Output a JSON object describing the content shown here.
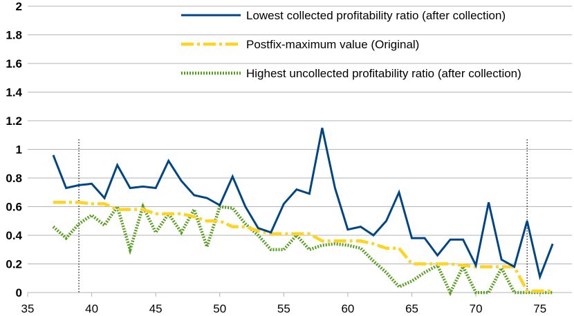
{
  "chart_data": {
    "type": "line",
    "title": "",
    "xlabel": "",
    "ylabel": "",
    "xlim": [
      35,
      77.5
    ],
    "ylim": [
      0,
      2
    ],
    "x_ticks": [
      35,
      40,
      45,
      50,
      55,
      60,
      65,
      70,
      75
    ],
    "y_ticks": [
      0,
      0.2,
      0.4,
      0.6,
      0.8,
      1,
      1.2,
      1.4,
      1.6,
      1.8,
      2
    ],
    "x_tick_labels": [
      "35",
      "40",
      "45",
      "50",
      "55",
      "60",
      "65",
      "70",
      "75"
    ],
    "y_tick_labels": [
      "0",
      "0.2",
      "0.4",
      "0.6",
      "0.8",
      "1",
      "1.2",
      "1.4",
      "1.6",
      "1.8",
      "2"
    ],
    "grid": "horizontal",
    "legend_position": "top-right",
    "vertical_markers": [
      39,
      74
    ],
    "x": [
      37,
      38,
      39,
      40,
      41,
      42,
      43,
      44,
      45,
      46,
      47,
      48,
      49,
      50,
      51,
      52,
      53,
      54,
      55,
      56,
      57,
      58,
      59,
      60,
      61,
      62,
      63,
      64,
      65,
      66,
      67,
      68,
      69,
      70,
      71,
      72,
      73,
      74,
      75,
      76
    ],
    "series": [
      {
        "name": "Lowest collected profitability ratio (after collection)",
        "color": "#004586",
        "style": "solid",
        "values": [
          0.96,
          0.73,
          0.75,
          0.76,
          0.66,
          0.89,
          0.73,
          0.74,
          0.73,
          0.92,
          0.78,
          0.68,
          0.66,
          0.61,
          0.81,
          0.6,
          0.45,
          0.42,
          0.62,
          0.72,
          0.69,
          1.15,
          0.73,
          0.44,
          0.46,
          0.4,
          0.5,
          0.7,
          0.38,
          0.38,
          0.26,
          0.37,
          0.37,
          0.19,
          0.63,
          0.23,
          0.18,
          0.5,
          0.11,
          0.34
        ]
      },
      {
        "name": "Postfix-maximum value (Original)",
        "color": "#ffd320",
        "style": "dashdot",
        "values": [
          0.63,
          0.63,
          0.63,
          0.62,
          0.62,
          0.58,
          0.58,
          0.58,
          0.55,
          0.55,
          0.55,
          0.53,
          0.5,
          0.5,
          0.46,
          0.46,
          0.43,
          0.41,
          0.41,
          0.41,
          0.41,
          0.36,
          0.36,
          0.36,
          0.36,
          0.34,
          0.31,
          0.31,
          0.2,
          0.2,
          0.2,
          0.2,
          0.19,
          0.18,
          0.18,
          0.18,
          0.18,
          0.01,
          0.01,
          0.01
        ]
      },
      {
        "name": "Highest uncollected profitability ratio (after collection)",
        "color": "#579d1c",
        "style": "dotted",
        "values": [
          0.46,
          0.38,
          0.48,
          0.54,
          0.47,
          0.6,
          0.3,
          0.6,
          0.42,
          0.55,
          0.42,
          0.58,
          0.32,
          0.6,
          0.59,
          0.48,
          0.4,
          0.3,
          0.3,
          0.4,
          0.3,
          0.33,
          0.34,
          0.33,
          0.31,
          0.22,
          0.14,
          0.04,
          0.08,
          0.14,
          0.19,
          0.0,
          0.18,
          0.0,
          0.0,
          0.17,
          0.0,
          0.0,
          0.0,
          0.0
        ]
      }
    ]
  }
}
